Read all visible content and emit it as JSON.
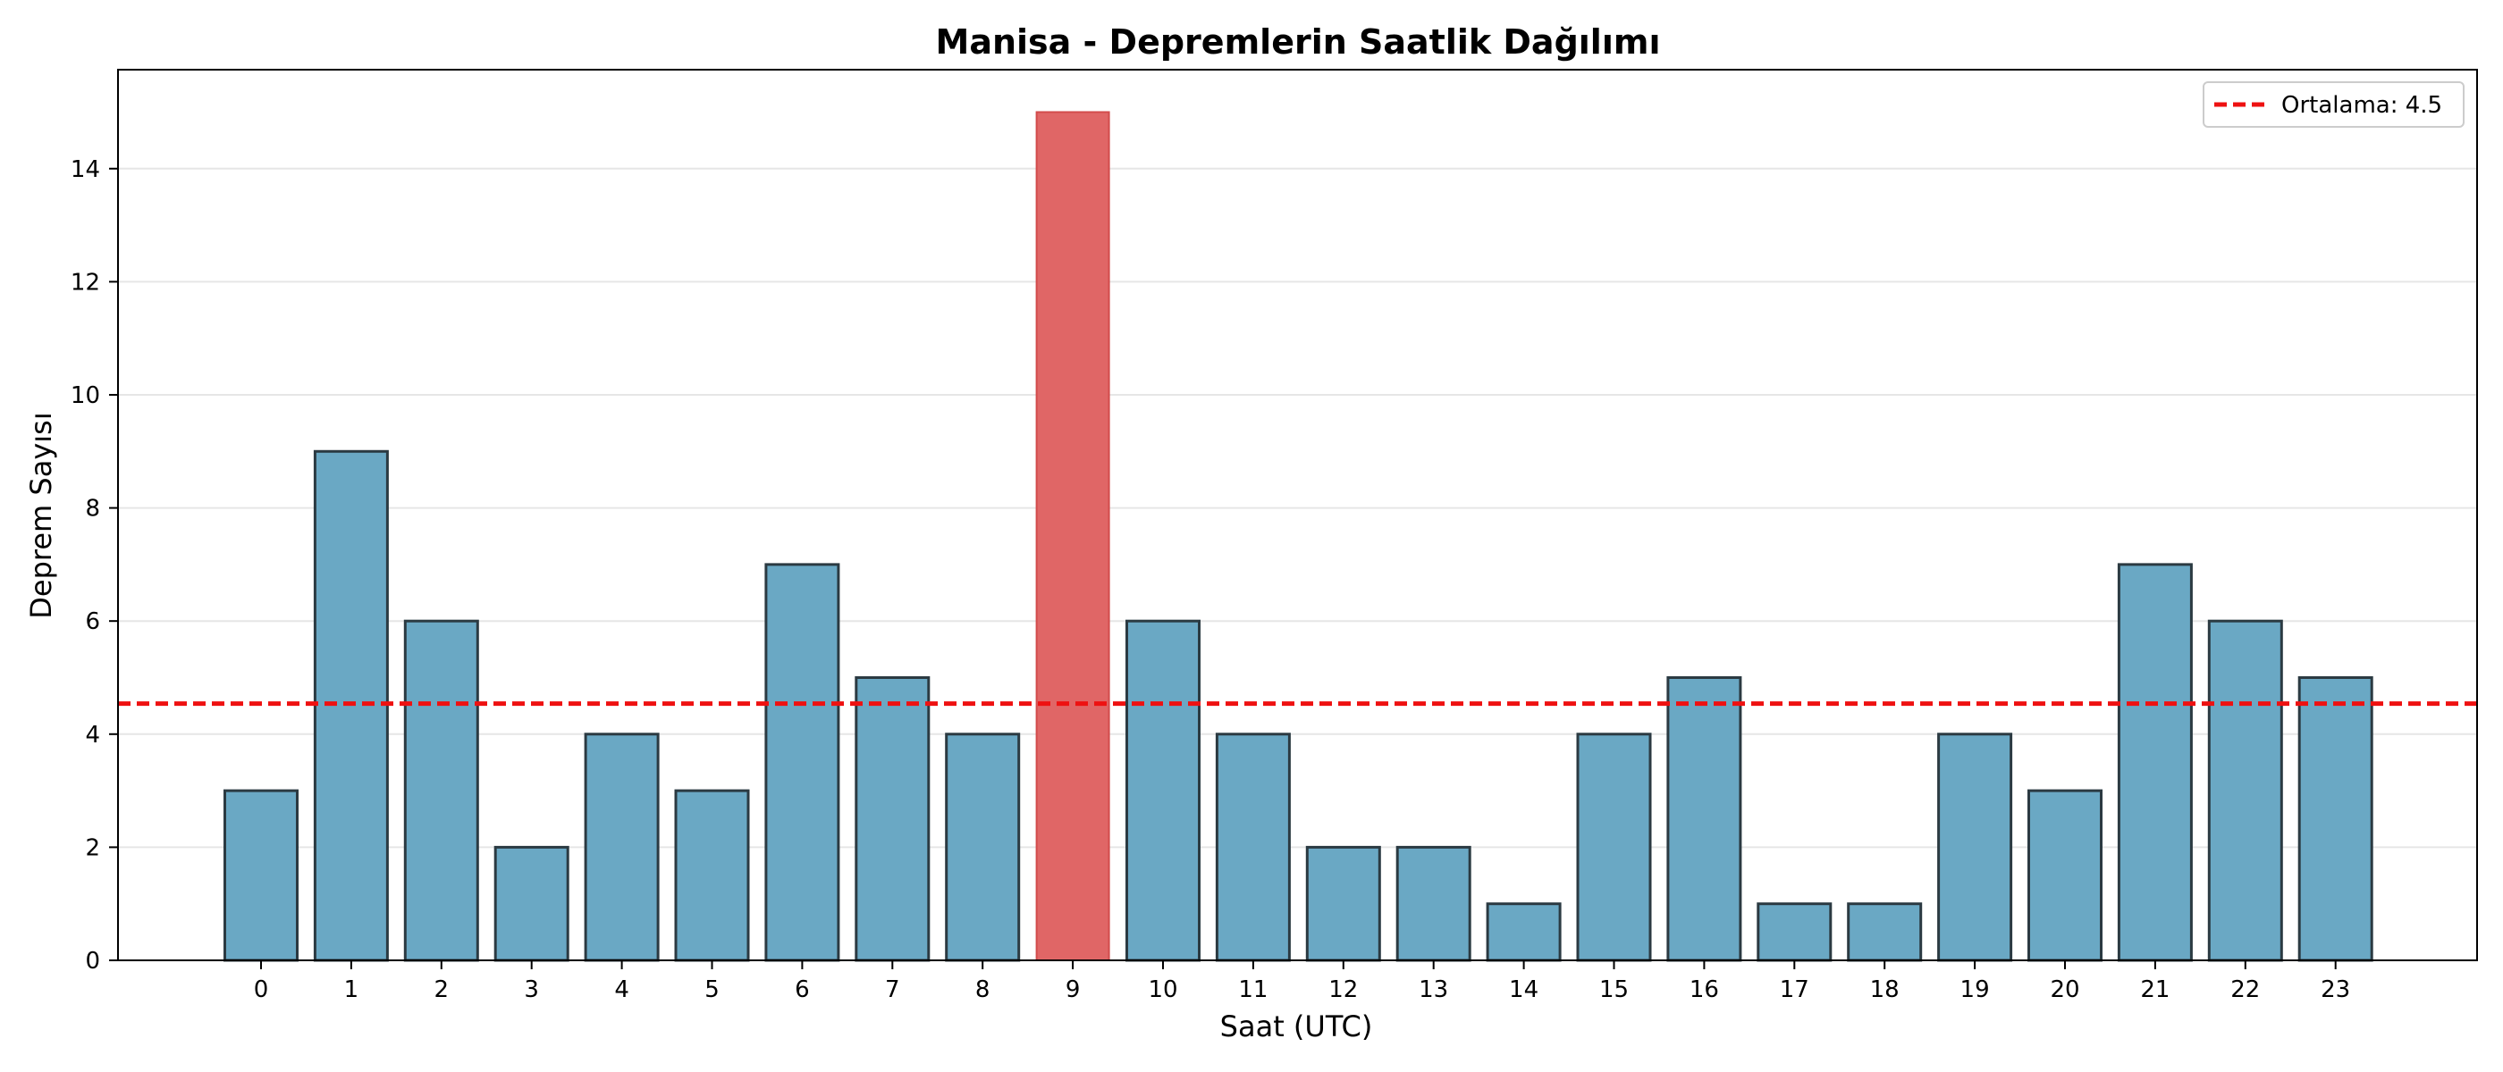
{
  "chart_data": {
    "type": "bar",
    "title": "Manisa - Depremlerin Saatlik Dağılımı",
    "xlabel": "Saat (UTC)",
    "ylabel": "Deprem Sayısı",
    "categories": [
      "0",
      "1",
      "2",
      "3",
      "4",
      "5",
      "6",
      "7",
      "8",
      "9",
      "10",
      "11",
      "12",
      "13",
      "14",
      "15",
      "16",
      "17",
      "18",
      "19",
      "20",
      "21",
      "22",
      "23"
    ],
    "values": [
      3,
      9,
      6,
      2,
      4,
      3,
      7,
      5,
      4,
      15,
      6,
      4,
      2,
      2,
      1,
      4,
      5,
      1,
      1,
      4,
      3,
      7,
      6,
      5
    ],
    "highlight_index": 9,
    "ylim": [
      0,
      15.75
    ],
    "yticks": [
      0,
      2,
      4,
      6,
      8,
      10,
      12,
      14
    ],
    "grid": "horizontal",
    "mean_line": {
      "value": 4.54,
      "label": "Ortalama: 4.5"
    },
    "legend_position": "top-right",
    "colors": {
      "bar": "#6aa8c4",
      "highlight": "#e06666",
      "bar_edge": "#2b3a42",
      "mean_line": "#ee1111",
      "grid": "#e6e6e6"
    }
  }
}
